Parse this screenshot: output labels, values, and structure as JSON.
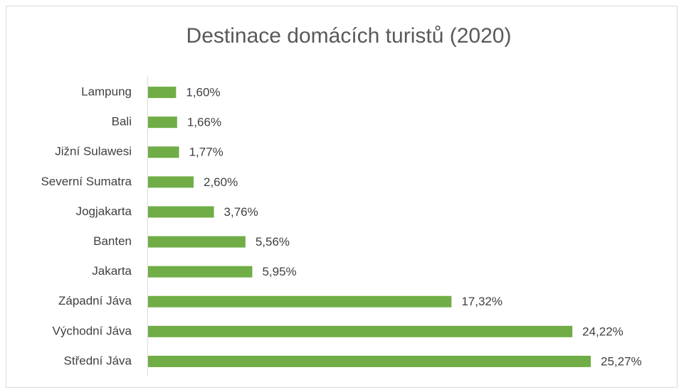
{
  "chart_data": {
    "type": "barh",
    "title": "Destinace domácích turistů (2020)",
    "categories": [
      "Lampung",
      "Bali",
      "Jižní Sulawesi",
      "Severní Sumatra",
      "Jogjakarta",
      "Banten",
      "Jakarta",
      "Západní Jáva",
      "Východní Jáva",
      "Střední Jáva"
    ],
    "values": [
      1.6,
      1.66,
      1.77,
      2.6,
      3.76,
      5.56,
      5.95,
      17.32,
      24.22,
      25.27
    ],
    "value_labels": [
      "1,60%",
      "1,66%",
      "1,77%",
      "2,60%",
      "3,76%",
      "5,56%",
      "5,95%",
      "17,32%",
      "24,22%",
      "25,27%"
    ],
    "color": "#70ad47"
  }
}
